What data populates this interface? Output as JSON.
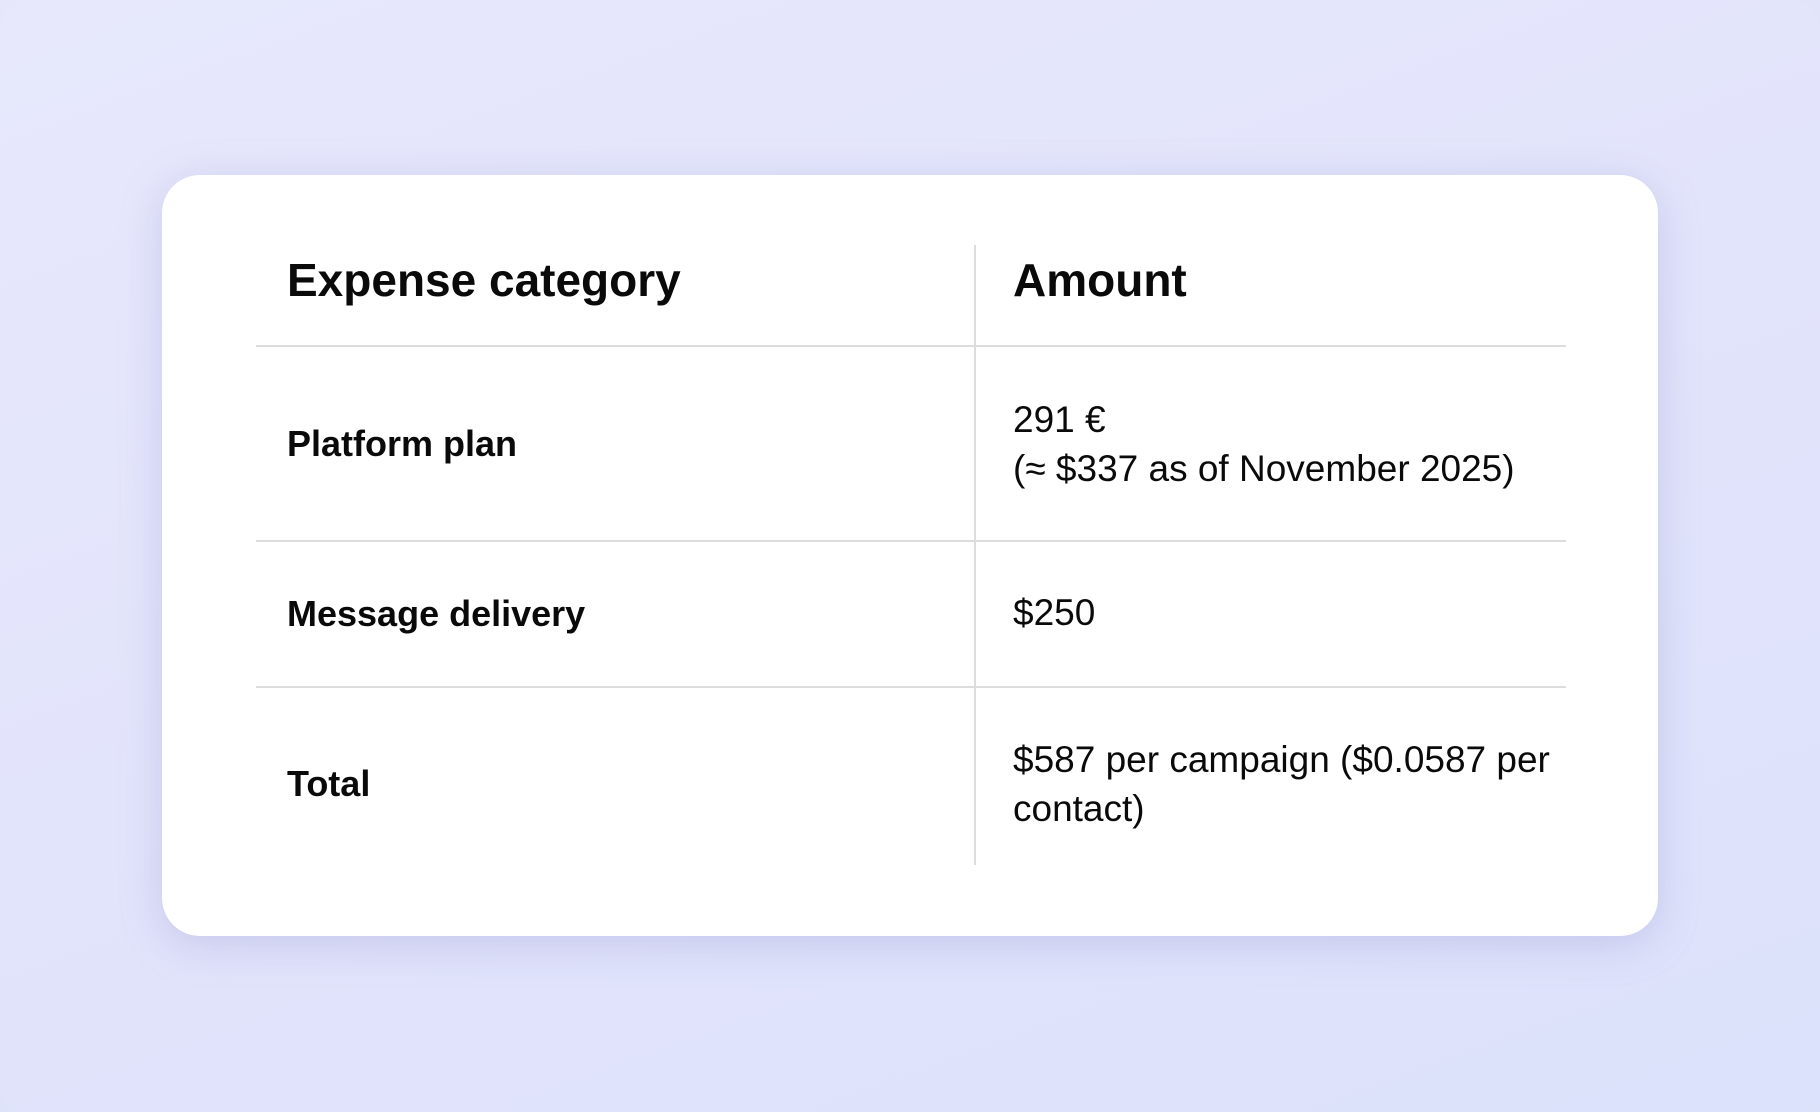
{
  "table": {
    "headers": [
      "Expense category",
      "Amount"
    ],
    "rows": [
      {
        "category": "Platform plan",
        "amount_line1": "291 €",
        "amount_line2": "(≈ $337 as of November 2025)"
      },
      {
        "category": "Message delivery",
        "amount_line1": "$250"
      },
      {
        "category": "Total",
        "amount_line1": "$587 per campaign ($0.0587 per contact)"
      }
    ]
  }
}
